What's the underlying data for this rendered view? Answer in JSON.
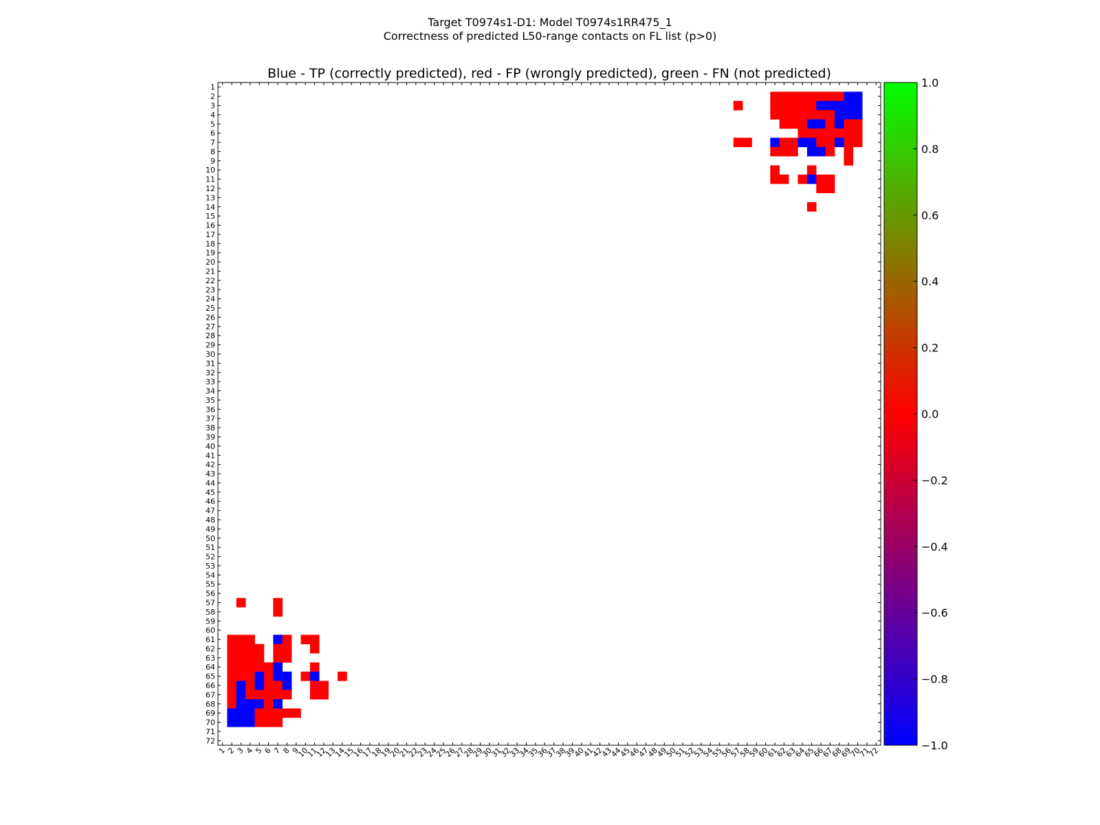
{
  "figure": {
    "title_line1": "Target T0974s1-D1: Model T0974s1RR475_1",
    "title_line2": "Correctness of predicted L50-range contacts on FL list (p>0)"
  },
  "chart_data": {
    "type": "heatmap",
    "title": "Blue - TP (correctly predicted), red - FP (wrongly predicted), green - FN (not predicted)",
    "n": 72,
    "x_ticks": [
      1,
      2,
      3,
      4,
      5,
      6,
      7,
      8,
      9,
      10,
      11,
      12,
      13,
      14,
      15,
      16,
      17,
      18,
      19,
      20,
      21,
      22,
      23,
      24,
      25,
      26,
      27,
      28,
      29,
      30,
      31,
      32,
      33,
      34,
      35,
      36,
      37,
      38,
      39,
      40,
      41,
      42,
      43,
      44,
      45,
      46,
      47,
      48,
      49,
      50,
      51,
      52,
      53,
      54,
      55,
      56,
      57,
      58,
      59,
      60,
      61,
      62,
      63,
      64,
      65,
      66,
      67,
      68,
      69,
      70,
      71,
      72
    ],
    "y_ticks": [
      1,
      2,
      3,
      4,
      5,
      6,
      7,
      8,
      9,
      10,
      11,
      12,
      13,
      14,
      15,
      16,
      17,
      18,
      19,
      20,
      21,
      22,
      23,
      24,
      25,
      26,
      27,
      28,
      29,
      30,
      31,
      32,
      33,
      34,
      35,
      36,
      37,
      38,
      39,
      40,
      41,
      42,
      43,
      44,
      45,
      46,
      47,
      48,
      49,
      50,
      51,
      52,
      53,
      54,
      55,
      56,
      57,
      58,
      59,
      60,
      61,
      62,
      63,
      64,
      65,
      66,
      67,
      68,
      69,
      70,
      71,
      72
    ],
    "value_meaning": {
      "-1": "TP (blue)",
      "0": "FP (red)",
      "1": "FN (green)"
    },
    "cells_upper": [
      [
        2,
        61,
        0
      ],
      [
        2,
        62,
        0
      ],
      [
        2,
        63,
        0
      ],
      [
        2,
        64,
        0
      ],
      [
        2,
        65,
        0
      ],
      [
        2,
        66,
        0
      ],
      [
        2,
        67,
        0
      ],
      [
        2,
        68,
        0
      ],
      [
        2,
        69,
        -1
      ],
      [
        2,
        70,
        -1
      ],
      [
        3,
        57,
        0
      ],
      [
        3,
        61,
        0
      ],
      [
        3,
        62,
        0
      ],
      [
        3,
        63,
        0
      ],
      [
        3,
        64,
        0
      ],
      [
        3,
        65,
        0
      ],
      [
        3,
        66,
        -1
      ],
      [
        3,
        67,
        -1
      ],
      [
        3,
        68,
        -1
      ],
      [
        3,
        69,
        -1
      ],
      [
        3,
        70,
        -1
      ],
      [
        4,
        61,
        0
      ],
      [
        4,
        62,
        0
      ],
      [
        4,
        63,
        0
      ],
      [
        4,
        64,
        0
      ],
      [
        4,
        65,
        0
      ],
      [
        4,
        66,
        0
      ],
      [
        4,
        67,
        0
      ],
      [
        4,
        68,
        -1
      ],
      [
        4,
        69,
        -1
      ],
      [
        4,
        70,
        -1
      ],
      [
        5,
        62,
        0
      ],
      [
        5,
        63,
        0
      ],
      [
        5,
        64,
        0
      ],
      [
        5,
        65,
        -1
      ],
      [
        5,
        66,
        -1
      ],
      [
        5,
        67,
        0
      ],
      [
        5,
        68,
        -1
      ],
      [
        5,
        69,
        0
      ],
      [
        5,
        70,
        0
      ],
      [
        6,
        64,
        0
      ],
      [
        6,
        65,
        0
      ],
      [
        6,
        66,
        0
      ],
      [
        6,
        67,
        0
      ],
      [
        6,
        68,
        0
      ],
      [
        6,
        69,
        0
      ],
      [
        6,
        70,
        0
      ],
      [
        7,
        57,
        0
      ],
      [
        7,
        58,
        0
      ],
      [
        7,
        61,
        -1
      ],
      [
        7,
        62,
        0
      ],
      [
        7,
        63,
        0
      ],
      [
        7,
        64,
        -1
      ],
      [
        7,
        65,
        -1
      ],
      [
        7,
        66,
        0
      ],
      [
        7,
        67,
        0
      ],
      [
        7,
        68,
        -1
      ],
      [
        7,
        69,
        0
      ],
      [
        7,
        70,
        0
      ],
      [
        8,
        61,
        0
      ],
      [
        8,
        62,
        0
      ],
      [
        8,
        63,
        0
      ],
      [
        8,
        65,
        -1
      ],
      [
        8,
        66,
        -1
      ],
      [
        8,
        67,
        0
      ],
      [
        8,
        69,
        0
      ],
      [
        9,
        69,
        0
      ],
      [
        10,
        61,
        0
      ],
      [
        10,
        65,
        0
      ],
      [
        11,
        61,
        0
      ],
      [
        11,
        62,
        0
      ],
      [
        11,
        64,
        0
      ],
      [
        11,
        65,
        -1
      ],
      [
        11,
        66,
        0
      ],
      [
        11,
        67,
        0
      ],
      [
        12,
        66,
        0
      ],
      [
        12,
        67,
        0
      ],
      [
        14,
        65,
        0
      ]
    ],
    "colorbar": {
      "min": -1.0,
      "max": 1.0,
      "ticks": [
        "1.0",
        "0.8",
        "0.6",
        "0.4",
        "0.2",
        "0.0",
        "−0.2",
        "−0.4",
        "−0.6",
        "−0.8",
        "−1.0"
      ],
      "tick_values": [
        1.0,
        0.8,
        0.6,
        0.4,
        0.2,
        0.0,
        -0.2,
        -0.4,
        -0.6,
        -0.8,
        -1.0
      ]
    },
    "colors": {
      "tp": "#0000ff",
      "fp": "#ff0000",
      "fn": "#00ff00",
      "mid": "#ff0000"
    }
  }
}
